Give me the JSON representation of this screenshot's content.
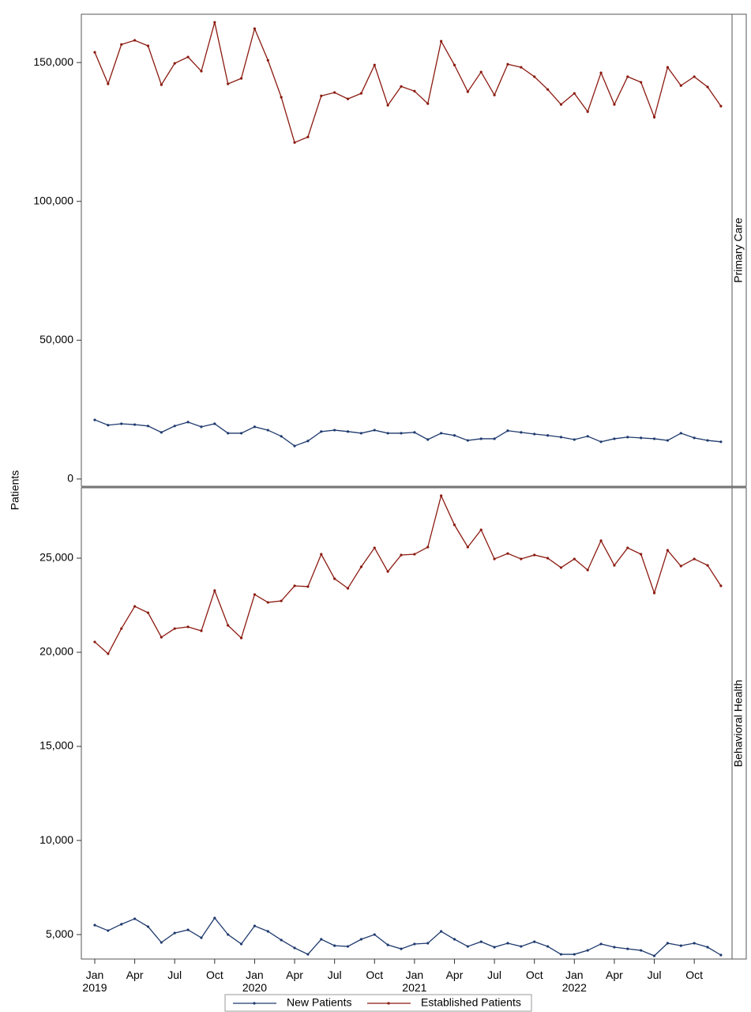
{
  "chart_data": {
    "type": "line",
    "y_label": "Patients",
    "legend": "bottom",
    "x": [
      "2019-01",
      "2019-02",
      "2019-03",
      "2019-04",
      "2019-05",
      "2019-06",
      "2019-07",
      "2019-08",
      "2019-09",
      "2019-10",
      "2019-11",
      "2019-12",
      "2020-01",
      "2020-02",
      "2020-03",
      "2020-04",
      "2020-05",
      "2020-06",
      "2020-07",
      "2020-08",
      "2020-09",
      "2020-10",
      "2020-11",
      "2020-12",
      "2021-01",
      "2021-02",
      "2021-03",
      "2021-04",
      "2021-05",
      "2021-06",
      "2021-07",
      "2021-08",
      "2021-09",
      "2021-10",
      "2021-11",
      "2021-12",
      "2022-01",
      "2022-02",
      "2022-03",
      "2022-04",
      "2022-05",
      "2022-06",
      "2022-07",
      "2022-08",
      "2022-09",
      "2022-10",
      "2022-11",
      "2022-12"
    ],
    "xticks": [
      {
        "value": "2019-01",
        "label": "Jan 2019"
      },
      {
        "value": "2019-04",
        "label": "Apr"
      },
      {
        "value": "2019-07",
        "label": "Jul"
      },
      {
        "value": "2019-10",
        "label": "Oct"
      },
      {
        "value": "2020-01",
        "label": "Jan 2020"
      },
      {
        "value": "2020-04",
        "label": "Apr"
      },
      {
        "value": "2020-07",
        "label": "Jul"
      },
      {
        "value": "2020-10",
        "label": "Oct"
      },
      {
        "value": "2021-01",
        "label": "Jan 2021"
      },
      {
        "value": "2021-04",
        "label": "Apr"
      },
      {
        "value": "2021-07",
        "label": "Jul"
      },
      {
        "value": "2021-10",
        "label": "Oct"
      },
      {
        "value": "2022-01",
        "label": "Jan 2022"
      },
      {
        "value": "2022-04",
        "label": "Apr"
      },
      {
        "value": "2022-07",
        "label": "Jul"
      },
      {
        "value": "2022-10",
        "label": "Oct"
      }
    ],
    "series": [
      {
        "name": "New Patients",
        "color": "#1f3a6e"
      },
      {
        "name": "Established Patients",
        "color": "#8b1a10"
      }
    ],
    "panels": [
      {
        "label": "Primary Care",
        "ylim": [
          -2600,
          167400
        ],
        "yticks": [
          0,
          {
            "value": 50000,
            "label": "50,000"
          },
          {
            "value": 100000,
            "label": "100,000"
          },
          {
            "value": 150000,
            "label": "150,000"
          }
        ],
        "series": [
          {
            "values": [
              21300,
              19400,
              19900,
              19600,
              19100,
              16800,
              19100,
              20500,
              18800,
              19900,
              16500,
              16500,
              18800,
              17600,
              15400,
              11900,
              13700,
              17100,
              17600,
              17100,
              16500,
              17600,
              16500,
              16500,
              16800,
              14200,
              16500,
              15700,
              13900,
              14500,
              14500,
              17400,
              16800,
              16200,
              15700,
              15100,
              14200,
              15400,
              13400,
              14500,
              15100,
              14800,
              14500,
              13900,
              16500,
              14800,
              13900,
              13400
            ]
          },
          {
            "values": [
              153700,
              142300,
              156500,
              158000,
              156000,
              142000,
              149700,
              152000,
              146900,
              164500,
              142300,
              144300,
              162200,
              150800,
              137500,
              121200,
              123200,
              138000,
              139200,
              136900,
              138900,
              149100,
              134600,
              141400,
              139700,
              135200,
              157700,
              149100,
              139500,
              146600,
              138300,
              149400,
              148300,
              144900,
              140300,
              134900,
              138900,
              132300,
              146300,
              134900,
              144900,
              142900,
              130300,
              148300,
              141700,
              144900,
              141200,
              134300
            ]
          }
        ]
      },
      {
        "label": "Behavioral Health",
        "ylim": [
          3700,
          28740
        ],
        "yticks": [
          {
            "value": 5000,
            "label": "5,000"
          },
          {
            "value": 10000,
            "label": "10,000"
          },
          {
            "value": 15000,
            "label": "15,000"
          },
          {
            "value": 20000,
            "label": "20,000"
          },
          {
            "value": 25000,
            "label": "25,000"
          }
        ],
        "series": [
          {
            "values": [
              5500,
              5210,
              5550,
              5840,
              5420,
              4580,
              5080,
              5250,
              4830,
              5880,
              5000,
              4500,
              5460,
              5170,
              4710,
              4290,
              3950,
              4750,
              4410,
              4370,
              4750,
              5000,
              4450,
              4240,
              4500,
              4540,
              5170,
              4750,
              4370,
              4620,
              4330,
              4540,
              4370,
              4620,
              4370,
              3950,
              3950,
              4160,
              4500,
              4330,
              4240,
              4160,
              3870,
              4540,
              4410,
              4540,
              4330,
              3910
            ]
          },
          {
            "values": [
              20550,
              19920,
              21260,
              22440,
              22100,
              20800,
              21260,
              21350,
              21140,
              23280,
              21430,
              20760,
              23070,
              22650,
              22730,
              23530,
              23490,
              25210,
              23910,
              23400,
              24540,
              25550,
              24290,
              25170,
              25210,
              25590,
              28320,
              26770,
              25590,
              26510,
              24960,
              25250,
              24960,
              25170,
              25000,
              24500,
              24960,
              24370,
              25930,
              24620,
              25550,
              25210,
              23150,
              25420,
              24580,
              24960,
              24620,
              23530
            ]
          }
        ]
      }
    ]
  }
}
